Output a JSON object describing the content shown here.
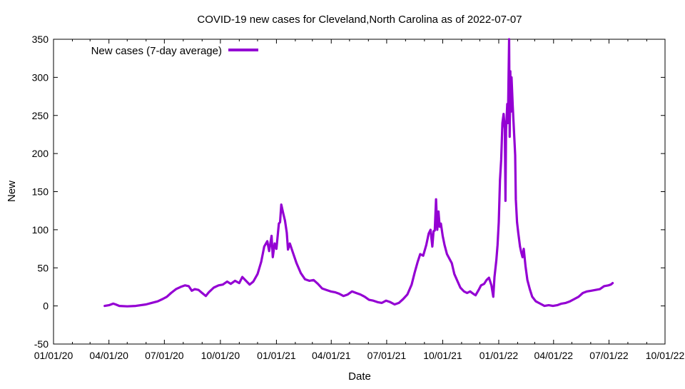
{
  "chart_data": {
    "type": "line",
    "title": "COVID-19 new cases for Cleveland,North Carolina as of 2022-07-07",
    "xlabel": "Date",
    "ylabel": "New",
    "xlim": [
      "2020-01-01",
      "2022-10-01"
    ],
    "ylim": [
      -50,
      350
    ],
    "x_ticks": [
      "01/01/20",
      "04/01/20",
      "07/01/20",
      "10/01/20",
      "01/01/21",
      "04/01/21",
      "07/01/21",
      "10/01/21",
      "01/01/22",
      "04/01/22",
      "07/01/22",
      "10/01/22"
    ],
    "y_ticks": [
      -50,
      0,
      50,
      100,
      150,
      200,
      250,
      300,
      350
    ],
    "grid": false,
    "legend_position": "top-left",
    "series": [
      {
        "name": "New cases (7-day average)",
        "color": "#9400d3",
        "points": [
          [
            "2020-03-25",
            0
          ],
          [
            "2020-04-01",
            1
          ],
          [
            "2020-04-08",
            3
          ],
          [
            "2020-04-12",
            2
          ],
          [
            "2020-04-18",
            0
          ],
          [
            "2020-05-01",
            -0.5
          ],
          [
            "2020-05-15",
            0
          ],
          [
            "2020-06-01",
            2
          ],
          [
            "2020-06-10",
            4
          ],
          [
            "2020-06-20",
            6
          ],
          [
            "2020-06-28",
            9
          ],
          [
            "2020-07-05",
            12
          ],
          [
            "2020-07-12",
            17
          ],
          [
            "2020-07-20",
            22
          ],
          [
            "2020-07-28",
            25
          ],
          [
            "2020-08-04",
            27
          ],
          [
            "2020-08-10",
            26
          ],
          [
            "2020-08-15",
            20
          ],
          [
            "2020-08-20",
            22
          ],
          [
            "2020-08-26",
            21
          ],
          [
            "2020-09-01",
            17
          ],
          [
            "2020-09-07",
            13
          ],
          [
            "2020-09-12",
            18
          ],
          [
            "2020-09-20",
            24
          ],
          [
            "2020-09-28",
            27
          ],
          [
            "2020-10-05",
            28
          ],
          [
            "2020-10-12",
            32
          ],
          [
            "2020-10-18",
            29
          ],
          [
            "2020-10-25",
            33
          ],
          [
            "2020-11-01",
            30
          ],
          [
            "2020-11-06",
            38
          ],
          [
            "2020-11-12",
            33
          ],
          [
            "2020-11-18",
            28
          ],
          [
            "2020-11-24",
            32
          ],
          [
            "2020-12-01",
            42
          ],
          [
            "2020-12-07",
            58
          ],
          [
            "2020-12-12",
            78
          ],
          [
            "2020-12-17",
            85
          ],
          [
            "2020-12-20",
            72
          ],
          [
            "2020-12-24",
            92
          ],
          [
            "2020-12-26",
            64
          ],
          [
            "2020-12-29",
            82
          ],
          [
            "2021-01-01",
            75
          ],
          [
            "2021-01-05",
            108
          ],
          [
            "2021-01-07",
            110
          ],
          [
            "2021-01-09",
            133
          ],
          [
            "2021-01-12",
            122
          ],
          [
            "2021-01-15",
            112
          ],
          [
            "2021-01-18",
            96
          ],
          [
            "2021-01-20",
            74
          ],
          [
            "2021-01-23",
            82
          ],
          [
            "2021-01-28",
            70
          ],
          [
            "2021-02-03",
            56
          ],
          [
            "2021-02-10",
            43
          ],
          [
            "2021-02-17",
            35
          ],
          [
            "2021-02-24",
            33
          ],
          [
            "2021-03-03",
            34
          ],
          [
            "2021-03-10",
            29
          ],
          [
            "2021-03-17",
            23
          ],
          [
            "2021-03-24",
            21
          ],
          [
            "2021-03-31",
            19
          ],
          [
            "2021-04-07",
            18
          ],
          [
            "2021-04-14",
            16
          ],
          [
            "2021-04-21",
            13
          ],
          [
            "2021-04-28",
            15
          ],
          [
            "2021-05-05",
            19
          ],
          [
            "2021-05-12",
            17
          ],
          [
            "2021-05-19",
            15
          ],
          [
            "2021-05-26",
            12
          ],
          [
            "2021-06-02",
            8
          ],
          [
            "2021-06-09",
            7
          ],
          [
            "2021-06-16",
            5
          ],
          [
            "2021-06-23",
            4
          ],
          [
            "2021-06-30",
            7
          ],
          [
            "2021-07-07",
            5
          ],
          [
            "2021-07-14",
            2
          ],
          [
            "2021-07-21",
            4
          ],
          [
            "2021-07-28",
            9
          ],
          [
            "2021-08-04",
            15
          ],
          [
            "2021-08-11",
            28
          ],
          [
            "2021-08-16",
            44
          ],
          [
            "2021-08-21",
            58
          ],
          [
            "2021-08-25",
            68
          ],
          [
            "2021-08-30",
            66
          ],
          [
            "2021-09-04",
            80
          ],
          [
            "2021-09-08",
            95
          ],
          [
            "2021-09-11",
            100
          ],
          [
            "2021-09-14",
            78
          ],
          [
            "2021-09-16",
            98
          ],
          [
            "2021-09-18",
            99
          ],
          [
            "2021-09-20",
            140
          ],
          [
            "2021-09-22",
            100
          ],
          [
            "2021-09-24",
            124
          ],
          [
            "2021-09-26",
            104
          ],
          [
            "2021-09-28",
            108
          ],
          [
            "2021-10-01",
            92
          ],
          [
            "2021-10-04",
            80
          ],
          [
            "2021-10-08",
            68
          ],
          [
            "2021-10-12",
            62
          ],
          [
            "2021-10-16",
            56
          ],
          [
            "2021-10-20",
            42
          ],
          [
            "2021-10-25",
            33
          ],
          [
            "2021-10-30",
            24
          ],
          [
            "2021-11-05",
            19
          ],
          [
            "2021-11-10",
            17
          ],
          [
            "2021-11-15",
            19
          ],
          [
            "2021-11-20",
            16
          ],
          [
            "2021-11-24",
            14
          ],
          [
            "2021-11-29",
            21
          ],
          [
            "2021-12-03",
            27
          ],
          [
            "2021-12-08",
            29
          ],
          [
            "2021-12-12",
            34
          ],
          [
            "2021-12-16",
            37
          ],
          [
            "2021-12-20",
            27
          ],
          [
            "2021-12-23",
            12
          ],
          [
            "2021-12-25",
            38
          ],
          [
            "2021-12-28",
            60
          ],
          [
            "2021-12-30",
            80
          ],
          [
            "2022-01-01",
            110
          ],
          [
            "2022-01-03",
            165
          ],
          [
            "2022-01-05",
            192
          ],
          [
            "2022-01-07",
            240
          ],
          [
            "2022-01-09",
            252
          ],
          [
            "2022-01-11",
            232
          ],
          [
            "2022-01-12",
            138
          ],
          [
            "2022-01-13",
            230
          ],
          [
            "2022-01-15",
            265
          ],
          [
            "2022-01-16",
            240
          ],
          [
            "2022-01-18",
            350
          ],
          [
            "2022-01-19",
            222
          ],
          [
            "2022-01-20",
            308
          ],
          [
            "2022-01-21",
            255
          ],
          [
            "2022-01-22",
            300
          ],
          [
            "2022-01-24",
            262
          ],
          [
            "2022-01-26",
            230
          ],
          [
            "2022-01-28",
            198
          ],
          [
            "2022-01-29",
            140
          ],
          [
            "2022-01-31",
            110
          ],
          [
            "2022-02-02",
            96
          ],
          [
            "2022-02-05",
            78
          ],
          [
            "2022-02-07",
            70
          ],
          [
            "2022-02-09",
            64
          ],
          [
            "2022-02-11",
            75
          ],
          [
            "2022-02-14",
            52
          ],
          [
            "2022-02-17",
            34
          ],
          [
            "2022-02-21",
            22
          ],
          [
            "2022-02-25",
            12
          ],
          [
            "2022-03-03",
            6
          ],
          [
            "2022-03-10",
            3
          ],
          [
            "2022-03-17",
            0
          ],
          [
            "2022-03-24",
            1
          ],
          [
            "2022-03-31",
            0
          ],
          [
            "2022-04-07",
            1
          ],
          [
            "2022-04-14",
            3
          ],
          [
            "2022-04-21",
            4
          ],
          [
            "2022-04-28",
            6
          ],
          [
            "2022-05-05",
            9
          ],
          [
            "2022-05-12",
            12
          ],
          [
            "2022-05-19",
            17
          ],
          [
            "2022-05-26",
            19
          ],
          [
            "2022-06-02",
            20
          ],
          [
            "2022-06-09",
            21
          ],
          [
            "2022-06-16",
            22
          ],
          [
            "2022-06-23",
            26
          ],
          [
            "2022-06-30",
            27
          ],
          [
            "2022-07-04",
            28
          ],
          [
            "2022-07-07",
            30
          ]
        ]
      }
    ]
  }
}
